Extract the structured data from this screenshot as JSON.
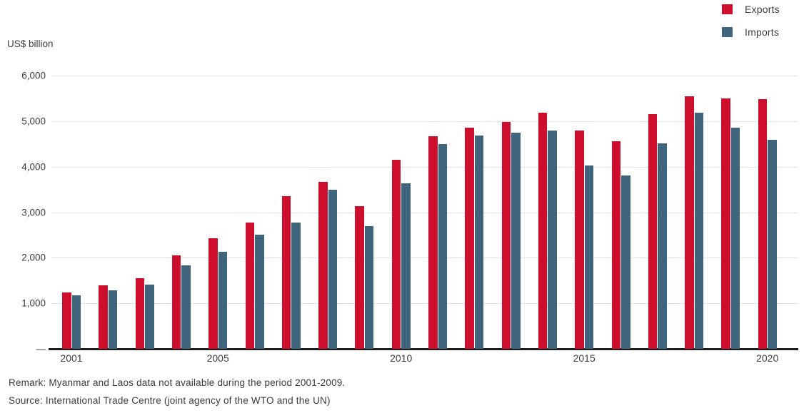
{
  "legend": {
    "exports_label": "Exports",
    "imports_label": "Imports"
  },
  "y_axis": {
    "title": "US$ billion"
  },
  "footer": {
    "remark": "Remark: Myanmar and Laos data not available during the period 2001-2009.",
    "source": "Source: International Trade Centre (joint agency of the WTO and the UN)"
  },
  "colors": {
    "exports": "#ce0e2d",
    "imports": "#3e657b",
    "gridline": "#e2e2e4",
    "axis_line": "#1c1c1c",
    "text": "#3d3d3d"
  },
  "chart_data": {
    "type": "bar",
    "title": "",
    "xlabel": "",
    "ylabel": "US$ billion",
    "unit": "US$ billion",
    "grid": "horizontal",
    "legend_position": "top-right",
    "ylim": [
      0,
      6000
    ],
    "y_ticks": [
      0,
      1000,
      2000,
      3000,
      4000,
      5000,
      6000
    ],
    "y_tick_labels": [
      "—",
      "1,000",
      "2,000",
      "3,000",
      "4,000",
      "5,000",
      "6,000"
    ],
    "x_ticks_shown": [
      "2001",
      "2005",
      "2010",
      "2015",
      "2020"
    ],
    "categories": [
      "2001",
      "2002",
      "2003",
      "2004",
      "2005",
      "2006",
      "2007",
      "2008",
      "2009",
      "2010",
      "2011",
      "2012",
      "2013",
      "2014",
      "2015",
      "2016",
      "2017",
      "2018",
      "2019",
      "2020"
    ],
    "series": [
      {
        "name": "Exports",
        "color": "#ce0e2d",
        "values": [
          1240,
          1390,
          1550,
          2060,
          2430,
          2770,
          3350,
          3670,
          3140,
          4150,
          4670,
          4860,
          4980,
          5190,
          4800,
          4560,
          5150,
          5540,
          5500,
          5480
        ]
      },
      {
        "name": "Imports",
        "color": "#3e657b",
        "values": [
          1170,
          1290,
          1410,
          1830,
          2130,
          2500,
          2770,
          3490,
          2700,
          3640,
          4500,
          4690,
          4740,
          4800,
          4030,
          3800,
          4520,
          5180,
          4860,
          4590
        ]
      }
    ]
  }
}
